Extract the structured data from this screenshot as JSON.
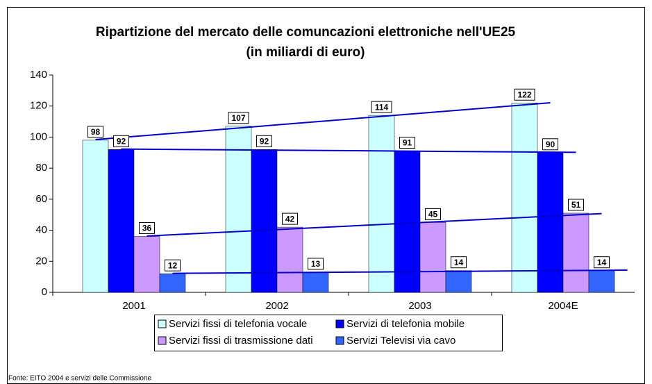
{
  "chart_data": {
    "type": "bar",
    "title": [
      "Ripartizione del mercato delle comuncazioni elettroniche nell'UE25",
      "(in miliardi di euro)"
    ],
    "categories": [
      "2001",
      "2002",
      "2003",
      "2004E"
    ],
    "series": [
      {
        "name": "Servizi fissi di telefonia vocale",
        "color": "#ccffff",
        "values": [
          98,
          107,
          114,
          122
        ]
      },
      {
        "name": "Servizi di telefonia mobile",
        "color": "#0000ff",
        "values": [
          92,
          92,
          91,
          90
        ]
      },
      {
        "name": "Servizi fissi di trasmissione dati",
        "color": "#cc99ff",
        "values": [
          36,
          42,
          45,
          51
        ]
      },
      {
        "name": "Servizi Televisi via cavo",
        "color": "#3366ff",
        "values": [
          12,
          13,
          14,
          14
        ]
      }
    ],
    "ylim": [
      0,
      140
    ],
    "yticks": [
      0,
      20,
      40,
      60,
      80,
      100,
      120,
      140
    ],
    "trendline": true,
    "trendline_color": "#0000cc",
    "source": "Fonte: EITO 2004 e servizi delle Commissione"
  }
}
